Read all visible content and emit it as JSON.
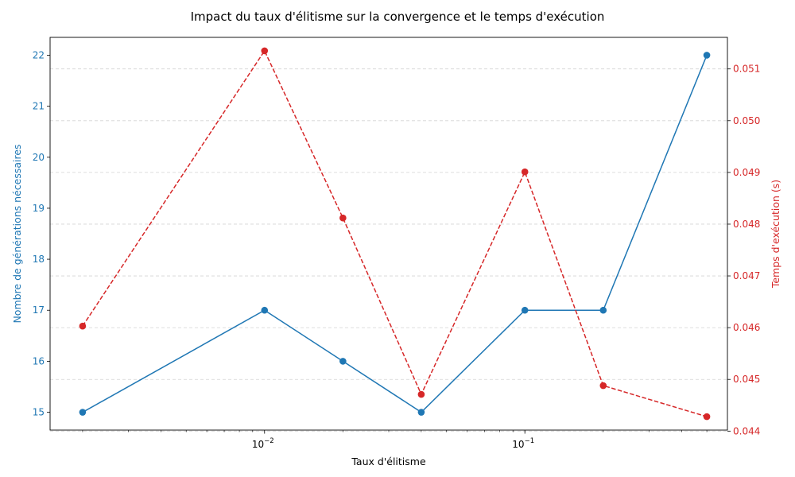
{
  "chart_data": {
    "type": "line",
    "title": "Impact du taux d'élitisme sur la convergence et le temps d'exécution",
    "xlabel": "Taux d'élitisme",
    "xscale": "log",
    "xlim": [
      0.0015,
      0.6
    ],
    "x": [
      0.002,
      0.01,
      0.02,
      0.04,
      0.1,
      0.2,
      0.5
    ],
    "x_ticks": [
      {
        "value": 0.01,
        "base": "10",
        "exp": "−2"
      },
      {
        "value": 0.1,
        "base": "10",
        "exp": "−1"
      }
    ],
    "series": [
      {
        "name": "Nombre de générations nécessaires",
        "axis": "left",
        "color": "#1f77b4",
        "linestyle": "solid",
        "marker": "circle",
        "values": [
          15,
          17,
          16,
          15,
          17,
          17,
          22
        ]
      },
      {
        "name": "Temps d'exécution (s)",
        "axis": "right",
        "color": "#d62728",
        "linestyle": "dashed",
        "marker": "circle",
        "values": [
          0.04603,
          0.05135,
          0.04812,
          0.04471,
          0.04901,
          0.04488,
          0.04428
        ]
      }
    ],
    "y_left": {
      "label": "Nombre de générations nécessaires",
      "color": "#1f77b4",
      "ylim": [
        14.65,
        22.35
      ],
      "ticks": [
        15,
        16,
        17,
        18,
        19,
        20,
        21,
        22
      ],
      "tick_labels": [
        "15",
        "16",
        "17",
        "18",
        "19",
        "20",
        "21",
        "22"
      ]
    },
    "y_right": {
      "label": "Temps d'exécution (s)",
      "color": "#d62728",
      "ylim": [
        0.04402,
        0.05161
      ],
      "ticks": [
        0.044,
        0.045,
        0.046,
        0.047,
        0.048,
        0.049,
        0.05,
        0.051
      ],
      "tick_labels": [
        "0.044",
        "0.045",
        "0.046",
        "0.047",
        "0.048",
        "0.049",
        "0.050",
        "0.051"
      ]
    },
    "grid": {
      "axis": "y-right",
      "style": "dashed"
    }
  }
}
